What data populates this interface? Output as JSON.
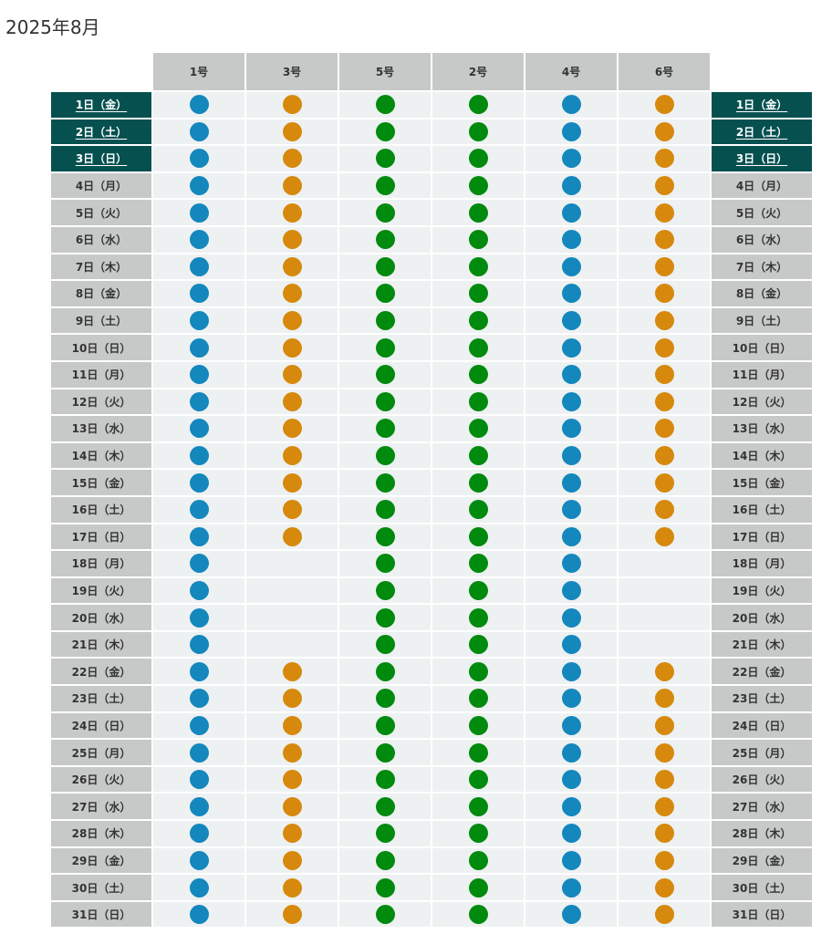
{
  "page": {
    "title": "2025年8月"
  },
  "columns": [
    {
      "label": "1号",
      "color": "#1487bd"
    },
    {
      "label": "3号",
      "color": "#d6890c"
    },
    {
      "label": "5号",
      "color": "#008a0e"
    },
    {
      "label": "2号",
      "color": "#008a0e"
    },
    {
      "label": "4号",
      "color": "#1487bd"
    },
    {
      "label": "6号",
      "color": "#d6890c"
    }
  ],
  "colors": {
    "highlight_bg": "#075050",
    "header_bg": "#c7c9c9",
    "cell_bg": "#eef1f2"
  },
  "rows": [
    {
      "date": "1日（金）",
      "highlight": true,
      "marks": [
        1,
        1,
        1,
        1,
        1,
        1
      ]
    },
    {
      "date": "2日（土）",
      "highlight": true,
      "marks": [
        1,
        1,
        1,
        1,
        1,
        1
      ]
    },
    {
      "date": "3日（日）",
      "highlight": true,
      "marks": [
        1,
        1,
        1,
        1,
        1,
        1
      ]
    },
    {
      "date": "4日（月）",
      "highlight": false,
      "marks": [
        1,
        1,
        1,
        1,
        1,
        1
      ]
    },
    {
      "date": "5日（火）",
      "highlight": false,
      "marks": [
        1,
        1,
        1,
        1,
        1,
        1
      ]
    },
    {
      "date": "6日（水）",
      "highlight": false,
      "marks": [
        1,
        1,
        1,
        1,
        1,
        1
      ]
    },
    {
      "date": "7日（木）",
      "highlight": false,
      "marks": [
        1,
        1,
        1,
        1,
        1,
        1
      ]
    },
    {
      "date": "8日（金）",
      "highlight": false,
      "marks": [
        1,
        1,
        1,
        1,
        1,
        1
      ]
    },
    {
      "date": "9日（土）",
      "highlight": false,
      "marks": [
        1,
        1,
        1,
        1,
        1,
        1
      ]
    },
    {
      "date": "10日（日）",
      "highlight": false,
      "marks": [
        1,
        1,
        1,
        1,
        1,
        1
      ]
    },
    {
      "date": "11日（月）",
      "highlight": false,
      "marks": [
        1,
        1,
        1,
        1,
        1,
        1
      ]
    },
    {
      "date": "12日（火）",
      "highlight": false,
      "marks": [
        1,
        1,
        1,
        1,
        1,
        1
      ]
    },
    {
      "date": "13日（水）",
      "highlight": false,
      "marks": [
        1,
        1,
        1,
        1,
        1,
        1
      ]
    },
    {
      "date": "14日（木）",
      "highlight": false,
      "marks": [
        1,
        1,
        1,
        1,
        1,
        1
      ]
    },
    {
      "date": "15日（金）",
      "highlight": false,
      "marks": [
        1,
        1,
        1,
        1,
        1,
        1
      ]
    },
    {
      "date": "16日（土）",
      "highlight": false,
      "marks": [
        1,
        1,
        1,
        1,
        1,
        1
      ]
    },
    {
      "date": "17日（日）",
      "highlight": false,
      "marks": [
        1,
        1,
        1,
        1,
        1,
        1
      ]
    },
    {
      "date": "18日（月）",
      "highlight": false,
      "marks": [
        1,
        0,
        1,
        1,
        1,
        0
      ]
    },
    {
      "date": "19日（火）",
      "highlight": false,
      "marks": [
        1,
        0,
        1,
        1,
        1,
        0
      ]
    },
    {
      "date": "20日（水）",
      "highlight": false,
      "marks": [
        1,
        0,
        1,
        1,
        1,
        0
      ]
    },
    {
      "date": "21日（木）",
      "highlight": false,
      "marks": [
        1,
        0,
        1,
        1,
        1,
        0
      ]
    },
    {
      "date": "22日（金）",
      "highlight": false,
      "marks": [
        1,
        1,
        1,
        1,
        1,
        1
      ]
    },
    {
      "date": "23日（土）",
      "highlight": false,
      "marks": [
        1,
        1,
        1,
        1,
        1,
        1
      ]
    },
    {
      "date": "24日（日）",
      "highlight": false,
      "marks": [
        1,
        1,
        1,
        1,
        1,
        1
      ]
    },
    {
      "date": "25日（月）",
      "highlight": false,
      "marks": [
        1,
        1,
        1,
        1,
        1,
        1
      ]
    },
    {
      "date": "26日（火）",
      "highlight": false,
      "marks": [
        1,
        1,
        1,
        1,
        1,
        1
      ]
    },
    {
      "date": "27日（水）",
      "highlight": false,
      "marks": [
        1,
        1,
        1,
        1,
        1,
        1
      ]
    },
    {
      "date": "28日（木）",
      "highlight": false,
      "marks": [
        1,
        1,
        1,
        1,
        1,
        1
      ]
    },
    {
      "date": "29日（金）",
      "highlight": false,
      "marks": [
        1,
        1,
        1,
        1,
        1,
        1
      ]
    },
    {
      "date": "30日（土）",
      "highlight": false,
      "marks": [
        1,
        1,
        1,
        1,
        1,
        1
      ]
    },
    {
      "date": "31日（日）",
      "highlight": false,
      "marks": [
        1,
        1,
        1,
        1,
        1,
        1
      ]
    }
  ]
}
